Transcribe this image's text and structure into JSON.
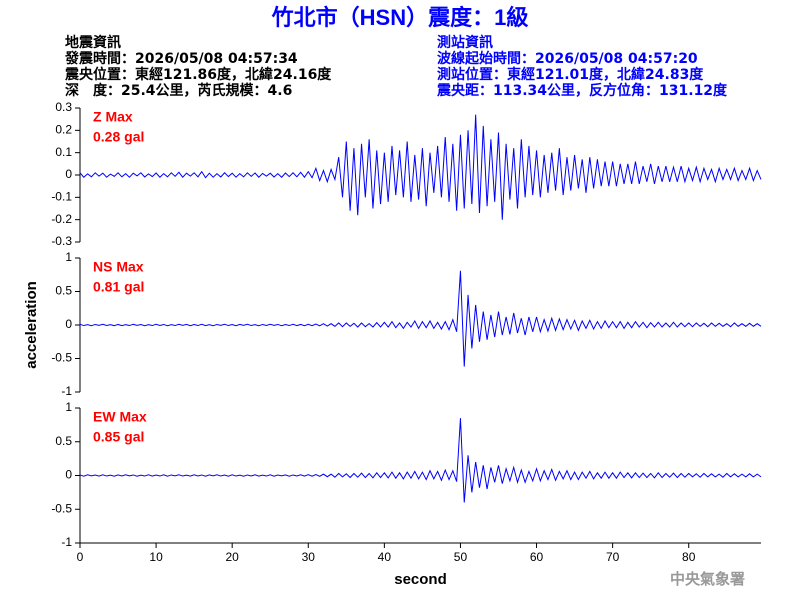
{
  "title": "竹北市（HSN）震度：1級",
  "left_info": [
    "地震資訊",
    "發震時間：2026/05/08 04:57:34",
    "震央位置：東經121.86度，北緯24.16度",
    "深　度：25.4公里，芮氏規模：4.6"
  ],
  "right_info": [
    "測站資訊",
    "波線起始時間：2026/05/08 04:57:20",
    "測站位置：東經121.01度，北緯24.83度",
    "震央距：113.34公里，反方位角：131.12度"
  ],
  "footer": "中央氣象署",
  "chart_data": [
    {
      "type": "line",
      "color": "#0000ff",
      "annotations": [
        "Z Max",
        "0.28 gal"
      ],
      "ylim": [
        -0.3,
        0.3
      ],
      "yticks": [
        -0.3,
        -0.2,
        -0.1,
        0,
        0.1,
        0.2,
        0.3
      ],
      "xlim": [
        0,
        89.5
      ],
      "x": [
        0,
        0.5,
        1,
        1.5,
        2,
        2.5,
        3,
        3.5,
        4,
        4.5,
        5,
        5.5,
        6,
        6.5,
        7,
        7.5,
        8,
        8.5,
        9,
        9.5,
        10,
        10.5,
        11,
        11.5,
        12,
        12.5,
        13,
        13.5,
        14,
        14.5,
        15,
        15.5,
        16,
        16.5,
        17,
        17.5,
        18,
        18.5,
        19,
        19.5,
        20,
        20.5,
        21,
        21.5,
        22,
        22.5,
        23,
        23.5,
        24,
        24.5,
        25,
        25.5,
        26,
        26.5,
        27,
        27.5,
        28,
        28.5,
        29,
        29.5,
        30,
        30.5,
        31,
        31.5,
        32,
        32.5,
        33,
        33.5,
        34,
        34.5,
        35,
        35.5,
        36,
        36.5,
        37,
        37.5,
        38,
        38.5,
        39,
        39.5,
        40,
        40.5,
        41,
        41.5,
        42,
        42.5,
        43,
        43.5,
        44,
        44.5,
        45,
        45.5,
        46,
        46.5,
        47,
        47.5,
        48,
        48.5,
        49,
        49.5,
        50,
        50.5,
        51,
        51.5,
        52,
        52.5,
        53,
        53.5,
        54,
        54.5,
        55,
        55.5,
        56,
        56.5,
        57,
        57.5,
        58,
        58.5,
        59,
        59.5,
        60,
        60.5,
        61,
        61.5,
        62,
        62.5,
        63,
        63.5,
        64,
        64.5,
        65,
        65.5,
        66,
        66.5,
        67,
        67.5,
        68,
        68.5,
        69,
        69.5,
        70,
        70.5,
        71,
        71.5,
        72,
        72.5,
        73,
        73.5,
        74,
        74.5,
        75,
        75.5,
        76,
        76.5,
        77,
        77.5,
        78,
        78.5,
        79,
        79.5,
        80,
        80.5,
        81,
        81.5,
        82,
        82.5,
        83,
        83.5,
        84,
        84.5,
        85,
        85.5,
        86,
        86.5,
        87,
        87.5,
        88,
        88.5,
        89,
        89.5
      ],
      "values": [
        0.01,
        -0.01,
        0.005,
        -0.008,
        0.01,
        -0.005,
        0.008,
        -0.01,
        0.004,
        -0.006,
        0.01,
        -0.008,
        0.006,
        -0.01,
        0.008,
        -0.004,
        0.01,
        -0.009,
        0.005,
        -0.007,
        0.009,
        -0.01,
        0.006,
        -0.008,
        0.01,
        -0.006,
        0.012,
        -0.01,
        0.008,
        -0.005,
        0.01,
        -0.008,
        0.015,
        -0.012,
        0.008,
        -0.01,
        0.006,
        -0.009,
        0.01,
        -0.007,
        0.008,
        -0.01,
        0.006,
        -0.008,
        0.01,
        -0.006,
        0.009,
        -0.01,
        0.007,
        -0.005,
        0.008,
        -0.009,
        0.006,
        -0.01,
        0.009,
        -0.007,
        0.01,
        -0.008,
        0.012,
        -0.01,
        0.015,
        -0.012,
        0.03,
        -0.025,
        0.02,
        -0.03,
        0.025,
        -0.02,
        0.08,
        -0.1,
        0.15,
        -0.16,
        0.12,
        -0.18,
        0.14,
        -0.1,
        0.16,
        -0.15,
        0.11,
        -0.13,
        0.1,
        -0.12,
        0.13,
        -0.09,
        0.11,
        -0.1,
        0.15,
        -0.12,
        0.09,
        -0.11,
        0.12,
        -0.14,
        0.1,
        -0.08,
        0.13,
        -0.1,
        0.17,
        -0.12,
        0.14,
        -0.16,
        0.18,
        -0.15,
        0.2,
        -0.13,
        0.27,
        -0.17,
        0.22,
        -0.14,
        0.16,
        -0.12,
        0.19,
        -0.2,
        0.14,
        -0.11,
        0.12,
        -0.15,
        0.16,
        -0.1,
        0.13,
        -0.09,
        0.11,
        -0.1,
        0.09,
        -0.08,
        0.1,
        -0.07,
        0.12,
        -0.09,
        0.08,
        -0.07,
        0.09,
        -0.06,
        0.07,
        -0.08,
        0.08,
        -0.06,
        0.07,
        -0.05,
        0.06,
        -0.05,
        0.06,
        -0.05,
        0.05,
        -0.04,
        0.05,
        -0.04,
        0.06,
        -0.04,
        0.04,
        -0.03,
        0.05,
        -0.04,
        0.04,
        -0.03,
        0.04,
        -0.03,
        0.035,
        -0.03,
        0.04,
        -0.03,
        0.03,
        -0.025,
        0.035,
        -0.03,
        0.03,
        -0.02,
        0.025,
        -0.03,
        0.03,
        -0.02,
        0.025,
        -0.02,
        0.03,
        -0.025,
        0.02,
        -0.02,
        0.03,
        -0.025,
        0.02,
        -0.02
      ]
    },
    {
      "type": "line",
      "color": "#0000ff",
      "annotations": [
        "NS Max",
        "0.81 gal"
      ],
      "ylabel": "acceleration",
      "ylim": [
        -1,
        1
      ],
      "yticks": [
        -1,
        -0.5,
        0,
        0.5,
        1
      ],
      "xlim": [
        0,
        89.5
      ],
      "x": [
        0,
        0.5,
        1,
        1.5,
        2,
        2.5,
        3,
        3.5,
        4,
        4.5,
        5,
        5.5,
        6,
        6.5,
        7,
        7.5,
        8,
        8.5,
        9,
        9.5,
        10,
        10.5,
        11,
        11.5,
        12,
        12.5,
        13,
        13.5,
        14,
        14.5,
        15,
        15.5,
        16,
        16.5,
        17,
        17.5,
        18,
        18.5,
        19,
        19.5,
        20,
        20.5,
        21,
        21.5,
        22,
        22.5,
        23,
        23.5,
        24,
        24.5,
        25,
        25.5,
        26,
        26.5,
        27,
        27.5,
        28,
        28.5,
        29,
        29.5,
        30,
        30.5,
        31,
        31.5,
        32,
        32.5,
        33,
        33.5,
        34,
        34.5,
        35,
        35.5,
        36,
        36.5,
        37,
        37.5,
        38,
        38.5,
        39,
        39.5,
        40,
        40.5,
        41,
        41.5,
        42,
        42.5,
        43,
        43.5,
        44,
        44.5,
        45,
        45.5,
        46,
        46.5,
        47,
        47.5,
        48,
        48.5,
        49,
        49.5,
        50,
        50.5,
        51,
        51.5,
        52,
        52.5,
        53,
        53.5,
        54,
        54.5,
        55,
        55.5,
        56,
        56.5,
        57,
        57.5,
        58,
        58.5,
        59,
        59.5,
        60,
        60.5,
        61,
        61.5,
        62,
        62.5,
        63,
        63.5,
        64,
        64.5,
        65,
        65.5,
        66,
        66.5,
        67,
        67.5,
        68,
        68.5,
        69,
        69.5,
        70,
        70.5,
        71,
        71.5,
        72,
        72.5,
        73,
        73.5,
        74,
        74.5,
        75,
        75.5,
        76,
        76.5,
        77,
        77.5,
        78,
        78.5,
        79,
        79.5,
        80,
        80.5,
        81,
        81.5,
        82,
        82.5,
        83,
        83.5,
        84,
        84.5,
        85,
        85.5,
        86,
        86.5,
        87,
        87.5,
        88,
        88.5,
        89,
        89.5
      ],
      "values": [
        0.01,
        -0.008,
        0.006,
        -0.01,
        0.008,
        -0.006,
        0.01,
        -0.007,
        0.005,
        -0.01,
        0.008,
        -0.009,
        0.006,
        -0.008,
        0.01,
        -0.005,
        0.007,
        -0.01,
        0.006,
        -0.008,
        0.01,
        -0.007,
        0.008,
        -0.01,
        0.006,
        -0.008,
        0.01,
        -0.006,
        0.009,
        -0.01,
        0.007,
        -0.008,
        0.01,
        -0.009,
        0.006,
        -0.01,
        0.008,
        -0.006,
        0.01,
        -0.008,
        0.007,
        -0.01,
        0.009,
        -0.006,
        0.01,
        -0.008,
        0.006,
        -0.01,
        0.008,
        -0.007,
        0.01,
        -0.006,
        0.008,
        -0.01,
        0.007,
        -0.008,
        0.01,
        -0.009,
        0.008,
        -0.01,
        0.01,
        -0.01,
        0.015,
        -0.012,
        0.02,
        -0.015,
        0.02,
        -0.02,
        0.03,
        -0.025,
        0.03,
        -0.02,
        0.025,
        -0.03,
        0.03,
        -0.025,
        0.02,
        -0.03,
        0.035,
        -0.03,
        0.04,
        -0.03,
        0.05,
        -0.04,
        0.03,
        -0.05,
        0.04,
        -0.03,
        0.06,
        -0.05,
        0.05,
        -0.04,
        0.06,
        -0.05,
        0.04,
        -0.06,
        0.05,
        -0.07,
        0.08,
        -0.1,
        0.81,
        -0.62,
        0.45,
        -0.35,
        0.3,
        -0.25,
        0.2,
        -0.22,
        0.15,
        -0.18,
        0.2,
        -0.15,
        0.12,
        -0.14,
        0.18,
        -0.12,
        0.1,
        -0.15,
        0.12,
        -0.1,
        0.12,
        -0.1,
        0.08,
        -0.09,
        0.1,
        -0.08,
        0.09,
        -0.07,
        0.08,
        -0.06,
        0.07,
        -0.08,
        0.06,
        -0.05,
        0.07,
        -0.06,
        0.05,
        -0.05,
        0.06,
        -0.04,
        0.05,
        -0.04,
        0.05,
        -0.05,
        0.04,
        -0.04,
        0.05,
        -0.03,
        0.04,
        -0.04,
        0.035,
        -0.03,
        0.04,
        -0.03,
        0.03,
        -0.03,
        0.04,
        -0.03,
        0.03,
        -0.025,
        0.03,
        -0.025,
        0.03,
        -0.02,
        0.025,
        -0.025,
        0.03,
        -0.02,
        0.025,
        -0.02,
        0.02,
        -0.025,
        0.03,
        -0.02,
        0.02,
        -0.02,
        0.025,
        -0.02,
        0.02,
        -0.02
      ]
    },
    {
      "type": "line",
      "color": "#0000ff",
      "annotations": [
        "EW Max",
        "0.85 gal"
      ],
      "xlabel": "second",
      "ylim": [
        -1,
        1
      ],
      "yticks": [
        -1,
        -0.5,
        0,
        0.5,
        1
      ],
      "xlim": [
        0,
        89.5
      ],
      "xticks": [
        0,
        10,
        20,
        30,
        40,
        50,
        60,
        70,
        80
      ],
      "x": [
        0,
        0.5,
        1,
        1.5,
        2,
        2.5,
        3,
        3.5,
        4,
        4.5,
        5,
        5.5,
        6,
        6.5,
        7,
        7.5,
        8,
        8.5,
        9,
        9.5,
        10,
        10.5,
        11,
        11.5,
        12,
        12.5,
        13,
        13.5,
        14,
        14.5,
        15,
        15.5,
        16,
        16.5,
        17,
        17.5,
        18,
        18.5,
        19,
        19.5,
        20,
        20.5,
        21,
        21.5,
        22,
        22.5,
        23,
        23.5,
        24,
        24.5,
        25,
        25.5,
        26,
        26.5,
        27,
        27.5,
        28,
        28.5,
        29,
        29.5,
        30,
        30.5,
        31,
        31.5,
        32,
        32.5,
        33,
        33.5,
        34,
        34.5,
        35,
        35.5,
        36,
        36.5,
        37,
        37.5,
        38,
        38.5,
        39,
        39.5,
        40,
        40.5,
        41,
        41.5,
        42,
        42.5,
        43,
        43.5,
        44,
        44.5,
        45,
        45.5,
        46,
        46.5,
        47,
        47.5,
        48,
        48.5,
        49,
        49.5,
        50,
        50.5,
        51,
        51.5,
        52,
        52.5,
        53,
        53.5,
        54,
        54.5,
        55,
        55.5,
        56,
        56.5,
        57,
        57.5,
        58,
        58.5,
        59,
        59.5,
        60,
        60.5,
        61,
        61.5,
        62,
        62.5,
        63,
        63.5,
        64,
        64.5,
        65,
        65.5,
        66,
        66.5,
        67,
        67.5,
        68,
        68.5,
        69,
        69.5,
        70,
        70.5,
        71,
        71.5,
        72,
        72.5,
        73,
        73.5,
        74,
        74.5,
        75,
        75.5,
        76,
        76.5,
        77,
        77.5,
        78,
        78.5,
        79,
        79.5,
        80,
        80.5,
        81,
        81.5,
        82,
        82.5,
        83,
        83.5,
        84,
        84.5,
        85,
        85.5,
        86,
        86.5,
        87,
        87.5,
        88,
        88.5,
        89,
        89.5
      ],
      "values": [
        0.008,
        -0.01,
        0.01,
        -0.006,
        0.007,
        -0.009,
        0.01,
        -0.008,
        0.006,
        -0.01,
        0.009,
        -0.007,
        0.01,
        -0.006,
        0.008,
        -0.01,
        0.006,
        -0.008,
        0.01,
        -0.009,
        0.007,
        -0.008,
        0.01,
        -0.01,
        0.008,
        -0.006,
        0.01,
        -0.008,
        0.006,
        -0.009,
        0.01,
        -0.007,
        0.008,
        -0.01,
        0.009,
        -0.006,
        0.01,
        -0.008,
        0.007,
        -0.01,
        0.01,
        -0.008,
        0.006,
        -0.01,
        0.008,
        -0.007,
        0.01,
        -0.009,
        0.006,
        -0.008,
        0.01,
        -0.01,
        0.007,
        -0.006,
        0.009,
        -0.01,
        0.008,
        -0.007,
        0.01,
        -0.008,
        0.012,
        -0.01,
        0.015,
        -0.012,
        0.02,
        -0.018,
        0.02,
        -0.025,
        0.03,
        -0.02,
        0.025,
        -0.03,
        0.03,
        -0.025,
        0.035,
        -0.03,
        0.03,
        -0.035,
        0.04,
        -0.03,
        0.04,
        -0.035,
        0.05,
        -0.04,
        0.04,
        -0.05,
        0.05,
        -0.04,
        0.06,
        -0.05,
        0.05,
        -0.06,
        0.07,
        -0.05,
        0.06,
        -0.07,
        0.08,
        -0.06,
        0.07,
        -0.09,
        0.85,
        -0.4,
        0.3,
        -0.25,
        0.2,
        -0.18,
        0.15,
        -0.2,
        0.12,
        -0.1,
        0.15,
        -0.12,
        0.1,
        -0.08,
        0.12,
        -0.1,
        0.08,
        -0.1,
        0.06,
        -0.08,
        0.1,
        -0.08,
        0.07,
        -0.06,
        0.09,
        -0.07,
        0.06,
        -0.05,
        0.07,
        -0.06,
        0.05,
        -0.06,
        0.05,
        -0.04,
        0.06,
        -0.05,
        0.04,
        -0.04,
        0.05,
        -0.04,
        0.04,
        -0.04,
        0.05,
        -0.03,
        0.04,
        -0.035,
        0.04,
        -0.03,
        0.035,
        -0.03,
        0.03,
        -0.035,
        0.04,
        -0.03,
        0.03,
        -0.025,
        0.035,
        -0.03,
        0.03,
        -0.025,
        0.03,
        -0.02,
        0.025,
        -0.025,
        0.03,
        -0.02,
        0.025,
        -0.02,
        0.02,
        -0.025,
        0.03,
        -0.02,
        0.025,
        -0.02,
        0.02,
        -0.02,
        0.025,
        -0.02,
        0.02,
        -0.02
      ]
    }
  ]
}
